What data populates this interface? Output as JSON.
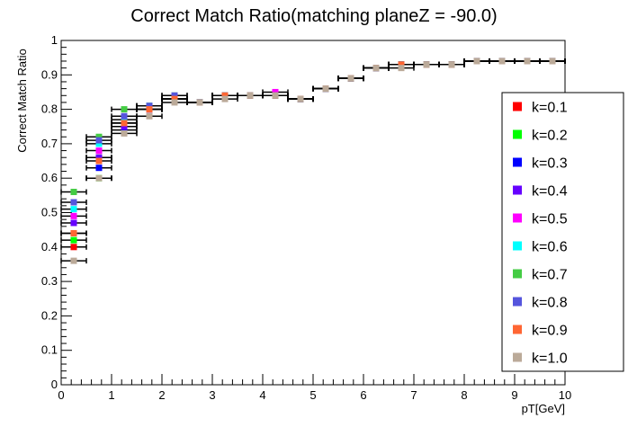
{
  "chart_data": {
    "type": "scatter",
    "title": "Correct Match Ratio(matching planeZ = -90.0)",
    "xlabel": "pT[GeV]",
    "ylabel": "Correct Match Ratio",
    "xlim": [
      0,
      10
    ],
    "ylim": [
      0,
      1
    ],
    "x_ticks": [
      "0",
      "1",
      "2",
      "3",
      "4",
      "5",
      "6",
      "7",
      "8",
      "9",
      "10"
    ],
    "y_ticks": [
      "0",
      "0.1",
      "0.2",
      "0.3",
      "0.4",
      "0.5",
      "0.6",
      "0.7",
      "0.8",
      "0.9",
      "1"
    ],
    "legend_position": "right",
    "grid": false,
    "x": [
      0.25,
      0.75,
      1.25,
      1.75,
      2.25,
      2.75,
      3.25,
      3.75,
      4.25,
      4.75,
      5.25,
      5.75,
      6.25,
      6.75,
      7.25,
      7.75,
      8.25,
      8.75,
      9.25,
      9.75
    ],
    "x_err": 0.25,
    "series": [
      {
        "name": "k=0.1",
        "color": "#ff0000",
        "values": [
          0.4,
          0.66,
          0.76,
          0.8,
          0.83,
          0.82,
          0.84,
          0.84,
          0.84,
          0.83,
          0.86,
          0.89,
          0.92,
          0.93,
          0.93,
          0.93,
          0.94,
          0.94,
          0.94,
          0.94
        ]
      },
      {
        "name": "k=0.2",
        "color": "#00ff00",
        "values": [
          0.42,
          0.6,
          0.75,
          0.8,
          0.83,
          0.82,
          0.84,
          0.84,
          0.84,
          0.83,
          0.86,
          0.89,
          0.92,
          0.93,
          0.93,
          0.93,
          0.94,
          0.94,
          0.94,
          0.94
        ]
      },
      {
        "name": "k=0.3",
        "color": "#0000ff",
        "values": [
          0.44,
          0.63,
          0.74,
          0.8,
          0.83,
          0.82,
          0.84,
          0.84,
          0.84,
          0.83,
          0.86,
          0.89,
          0.92,
          0.93,
          0.93,
          0.93,
          0.94,
          0.94,
          0.94,
          0.94
        ]
      },
      {
        "name": "k=0.4",
        "color": "#6600ff",
        "values": [
          0.47,
          0.66,
          0.75,
          0.8,
          0.83,
          0.82,
          0.84,
          0.84,
          0.84,
          0.83,
          0.86,
          0.89,
          0.92,
          0.93,
          0.93,
          0.93,
          0.94,
          0.94,
          0.94,
          0.94
        ]
      },
      {
        "name": "k=0.5",
        "color": "#ff00ff",
        "values": [
          0.49,
          0.68,
          0.76,
          0.8,
          0.83,
          0.82,
          0.84,
          0.84,
          0.85,
          0.83,
          0.86,
          0.89,
          0.92,
          0.93,
          0.93,
          0.93,
          0.94,
          0.94,
          0.94,
          0.94
        ]
      },
      {
        "name": "k=0.6",
        "color": "#00ffff",
        "values": [
          0.51,
          0.7,
          0.77,
          0.81,
          0.83,
          0.82,
          0.84,
          0.84,
          0.84,
          0.83,
          0.86,
          0.89,
          0.92,
          0.93,
          0.93,
          0.93,
          0.94,
          0.94,
          0.94,
          0.94
        ]
      },
      {
        "name": "k=0.7",
        "color": "#44cc44",
        "values": [
          0.56,
          0.72,
          0.8,
          0.81,
          0.84,
          0.82,
          0.84,
          0.84,
          0.84,
          0.83,
          0.86,
          0.89,
          0.92,
          0.93,
          0.93,
          0.93,
          0.94,
          0.94,
          0.94,
          0.94
        ]
      },
      {
        "name": "k=0.8",
        "color": "#5555dd",
        "values": [
          0.53,
          0.71,
          0.78,
          0.81,
          0.84,
          0.82,
          0.84,
          0.84,
          0.84,
          0.83,
          0.86,
          0.89,
          0.92,
          0.93,
          0.93,
          0.93,
          0.94,
          0.94,
          0.94,
          0.94
        ]
      },
      {
        "name": "k=0.9",
        "color": "#ff6633",
        "values": [
          0.44,
          0.65,
          0.76,
          0.8,
          0.83,
          0.82,
          0.84,
          0.84,
          0.84,
          0.83,
          0.86,
          0.89,
          0.92,
          0.93,
          0.93,
          0.93,
          0.94,
          0.94,
          0.94,
          0.94
        ]
      },
      {
        "name": "k=1.0",
        "color": "#bbaa99",
        "values": [
          0.36,
          0.6,
          0.73,
          0.78,
          0.82,
          0.82,
          0.83,
          0.84,
          0.84,
          0.83,
          0.86,
          0.89,
          0.92,
          0.92,
          0.93,
          0.93,
          0.94,
          0.94,
          0.94,
          0.94
        ]
      }
    ]
  }
}
